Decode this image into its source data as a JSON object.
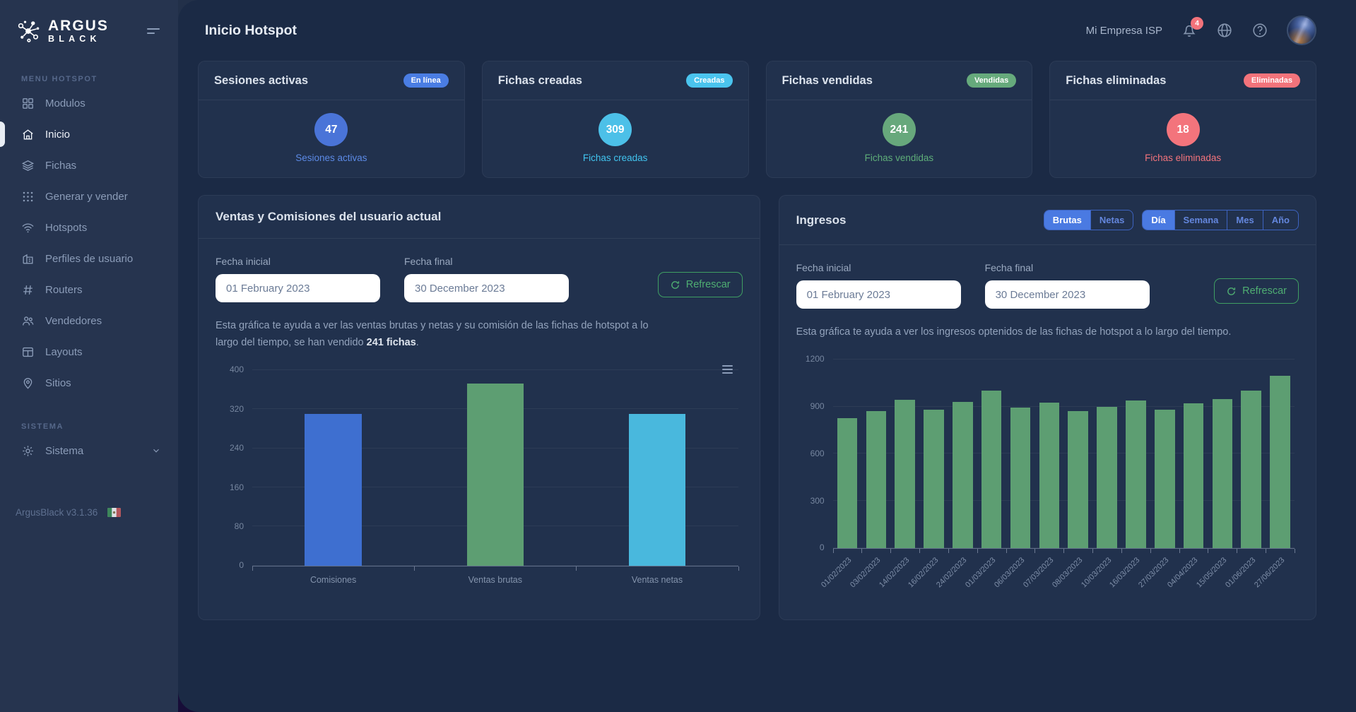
{
  "sidebar": {
    "logo": {
      "line1": "ARGUS",
      "line2": "BLACK"
    },
    "section_hotspot": "MENU HOTSPOT",
    "section_sistema": "SISTEMA",
    "items": [
      {
        "label": "Modulos",
        "icon": "modules-grid-icon"
      },
      {
        "label": "Inicio",
        "icon": "home-icon"
      },
      {
        "label": "Fichas",
        "icon": "layers-icon"
      },
      {
        "label": "Generar y vender",
        "icon": "apps-dots-icon"
      },
      {
        "label": "Hotspots",
        "icon": "wifi-icon"
      },
      {
        "label": "Perfiles de usuario",
        "icon": "user-profiles-icon"
      },
      {
        "label": "Routers",
        "icon": "hash-icon"
      },
      {
        "label": "Vendedores",
        "icon": "users-icon"
      },
      {
        "label": "Layouts",
        "icon": "layout-icon"
      },
      {
        "label": "Sitios",
        "icon": "map-pin-icon"
      }
    ],
    "system_item": {
      "label": "Sistema",
      "icon": "gear-icon"
    },
    "version": "ArgusBlack v3.1.36"
  },
  "header": {
    "title": "Inicio Hotspot",
    "company": "Mi Empresa ISP",
    "notification_count": "4"
  },
  "stat_cards": [
    {
      "title": "Sesiones activas",
      "badge": "En línea",
      "value": "47",
      "label": "Sesiones activas",
      "badge_bg": "#4a7de3",
      "circle_bg": "#4a74d8",
      "label_color": "#5c8ae6"
    },
    {
      "title": "Fichas creadas",
      "badge": "Creadas",
      "value": "309",
      "label": "Fichas creadas",
      "badge_bg": "#4ac4ee",
      "circle_bg": "#4cc0e8",
      "label_color": "#41c4ef"
    },
    {
      "title": "Fichas vendidas",
      "badge": "Vendidas",
      "value": "241",
      "label": "Fichas vendidas",
      "badge_bg": "#66aa7c",
      "circle_bg": "#67a87c",
      "label_color": "#5fae79"
    },
    {
      "title": "Fichas eliminadas",
      "badge": "Eliminadas",
      "value": "18",
      "label": "Fichas eliminadas",
      "badge_bg": "#f3737b",
      "circle_bg": "#f3747c",
      "label_color": "#f3747c"
    }
  ],
  "sales_panel": {
    "title": "Ventas y Comisiones del usuario actual",
    "fecha_inicial_label": "Fecha inicial",
    "fecha_inicial_value": "01 February 2023",
    "fecha_final_label": "Fecha final",
    "fecha_final_value": "30 December 2023",
    "refresh_label": "Refrescar",
    "description_prefix": "Esta gráfica te ayuda a ver las ventas brutas y netas y su comisión de las fichas de hotspot a lo largo del tiempo, se han vendido ",
    "description_bold": "241 fichas",
    "description_suffix": "."
  },
  "ingresos_panel": {
    "title": "Ingresos",
    "scope_options": [
      "Brutas",
      "Netas"
    ],
    "scope_active": "Brutas",
    "period_options": [
      "Día",
      "Semana",
      "Mes",
      "Año"
    ],
    "period_active": "Día",
    "fecha_inicial_label": "Fecha inicial",
    "fecha_inicial_value": "01 February 2023",
    "fecha_final_label": "Fecha final",
    "fecha_final_value": "30 December 2023",
    "refresh_label": "Refrescar",
    "description": "Esta gráfica te ayuda a ver los ingresos optenidos de las fichas de hotspot a lo largo del tiempo."
  },
  "chart_data": [
    {
      "type": "bar",
      "title": "Ventas y Comisiones del usuario actual",
      "categories": [
        "Comisiones",
        "Ventas brutas",
        "Ventas netas"
      ],
      "values": [
        310,
        372,
        310
      ],
      "colors": [
        "#3e6fd0",
        "#5d9e72",
        "#49b8dd"
      ],
      "ylim": [
        0,
        400
      ],
      "yticks": [
        400,
        320,
        240,
        160,
        80,
        0
      ],
      "grid": true,
      "legend": "none"
    },
    {
      "type": "bar",
      "title": "Ingresos",
      "categories": [
        "01/02/2023",
        "03/02/2023",
        "14/02/2023",
        "16/02/2023",
        "24/02/2023",
        "01/03/2023",
        "06/03/2023",
        "07/03/2023",
        "08/03/2023",
        "10/03/2023",
        "16/03/2023",
        "27/03/2023",
        "04/04/2023",
        "15/05/2023",
        "01/06/2023",
        "27/06/2023"
      ],
      "values": [
        825,
        870,
        945,
        880,
        930,
        1000,
        895,
        925,
        870,
        900,
        940,
        880,
        920,
        950,
        1000,
        1095
      ],
      "bar_color": "#5d9e72",
      "ylim": [
        0,
        1200
      ],
      "yticks": [
        1200,
        900,
        600,
        300,
        0
      ],
      "grid": true,
      "legend": "none"
    }
  ]
}
